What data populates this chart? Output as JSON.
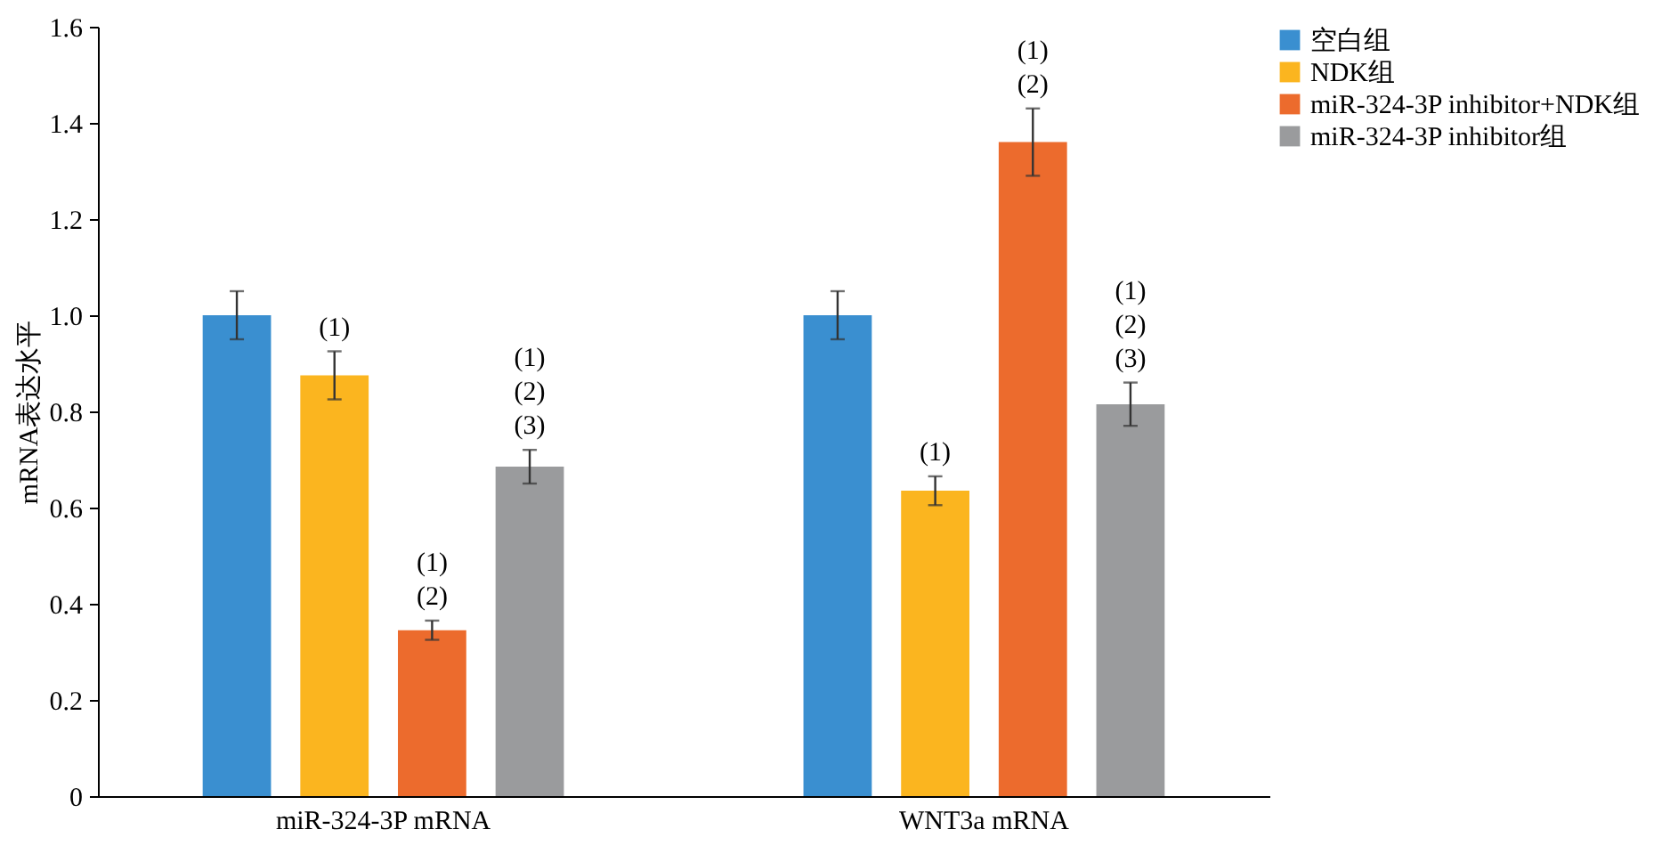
{
  "chart_data": {
    "type": "bar",
    "ylabel": "mRNA表达水平",
    "categories": [
      "miR-324-3P mRNA",
      "WNT3a mRNA"
    ],
    "series": [
      {
        "name": "空白组",
        "color": "#3a8fd0",
        "values": [
          1.0,
          1.0
        ],
        "errors": [
          0.05,
          0.05
        ]
      },
      {
        "name": "NDK组",
        "color": "#fbb51f",
        "values": [
          0.875,
          0.635
        ],
        "errors": [
          0.05,
          0.03
        ],
        "value_labels": [
          "(1)",
          "(1)"
        ]
      },
      {
        "name": "miR-324-3P inhibitor+NDK组",
        "color": "#ec6b2d",
        "values": [
          0.345,
          1.36
        ],
        "errors": [
          0.02,
          0.07
        ],
        "value_labels": [
          "(1)\n(2)",
          "(1)\n(2)"
        ]
      },
      {
        "name": "miR-324-3P inhibitor组",
        "color": "#9a9b9d",
        "values": [
          0.685,
          0.815
        ],
        "errors": [
          0.035,
          0.045
        ],
        "value_labels": [
          "(1)\n(2)\n(3)",
          "(1)\n(2)\n(3)"
        ]
      }
    ],
    "ylim": [
      0,
      1.6
    ],
    "yticks": [
      0,
      0.2,
      0.4,
      0.6,
      0.8,
      {
        "value": 1.0,
        "label": "1.0"
      },
      1.2,
      1.4,
      1.6
    ],
    "legend": "top right",
    "grid": false
  }
}
